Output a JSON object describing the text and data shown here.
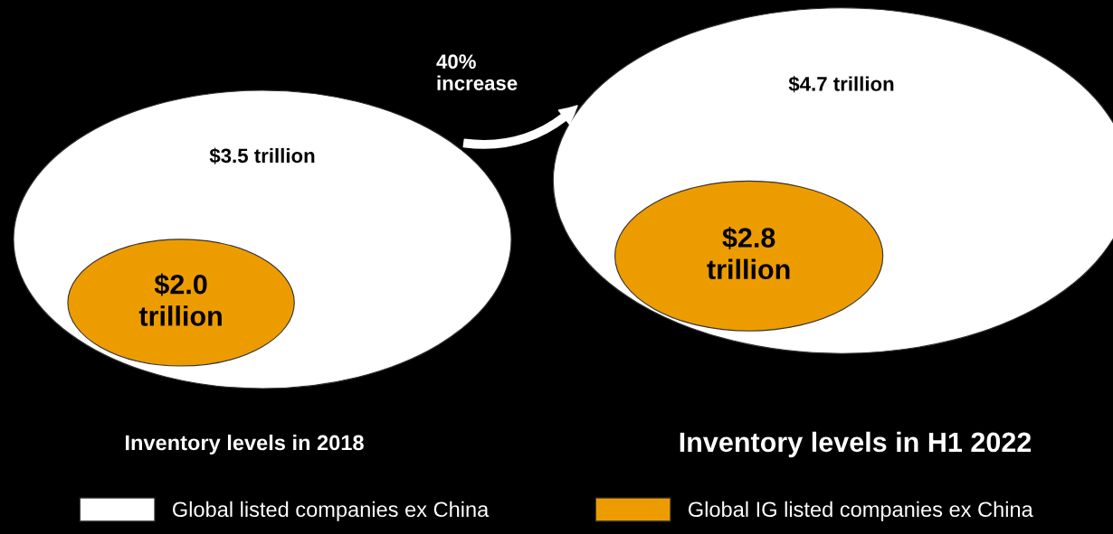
{
  "chart_data": {
    "type": "other",
    "categories": [
      "Inventory levels in 2018",
      "Inventory levels in H1 2022"
    ],
    "series": [
      {
        "name": "Global listed companies ex China",
        "color": "#ffffff",
        "values": [
          3.5,
          4.7
        ],
        "value_labels": [
          "$3.5 trillion",
          "$4.7 trillion"
        ]
      },
      {
        "name": "Global IG listed companies ex China",
        "color": "#ed9c00",
        "values": [
          2.0,
          2.8
        ],
        "value_labels": [
          "$2.0\ntrillion",
          "$2.8\ntrillion"
        ]
      }
    ],
    "annotations": [
      "40%\nincrease"
    ],
    "legend": "bottom"
  }
}
